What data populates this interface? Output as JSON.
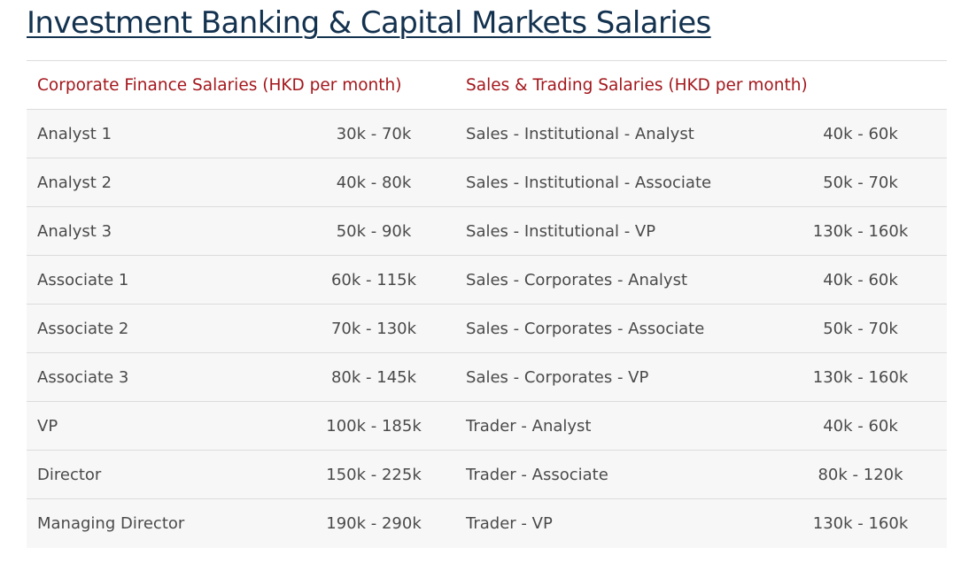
{
  "page": {
    "title": "Investment Banking & Capital Markets Salaries"
  },
  "table": {
    "headers": {
      "corporate_finance": "Corporate Finance Salaries (HKD per month)",
      "sales_trading": "Sales & Trading Salaries (HKD per month)"
    },
    "rows": [
      {
        "cf_role": "Analyst 1",
        "cf_range": "30k - 70k",
        "st_role": "Sales - Institutional - Analyst",
        "st_range": "40k - 60k"
      },
      {
        "cf_role": "Analyst 2",
        "cf_range": "40k - 80k",
        "st_role": "Sales - Institutional - Associate",
        "st_range": "50k - 70k"
      },
      {
        "cf_role": "Analyst 3",
        "cf_range": "50k - 90k",
        "st_role": "Sales - Institutional - VP",
        "st_range": "130k - 160k"
      },
      {
        "cf_role": "Associate 1",
        "cf_range": "60k - 115k",
        "st_role": "Sales - Corporates - Analyst",
        "st_range": "40k - 60k"
      },
      {
        "cf_role": "Associate 2",
        "cf_range": "70k - 130k",
        "st_role": "Sales - Corporates - Associate",
        "st_range": "50k - 70k"
      },
      {
        "cf_role": "Associate 3",
        "cf_range": "80k - 145k",
        "st_role": "Sales - Corporates - VP",
        "st_range": "130k - 160k"
      },
      {
        "cf_role": "VP",
        "cf_range": "100k - 185k",
        "st_role": "Trader - Analyst",
        "st_range": "40k - 60k"
      },
      {
        "cf_role": "Director",
        "cf_range": "150k - 225k",
        "st_role": "Trader - Associate",
        "st_range": "80k - 120k"
      },
      {
        "cf_role": "Managing Director",
        "cf_range": "190k - 290k",
        "st_role": "Trader - VP",
        "st_range": "130k - 160k"
      }
    ]
  },
  "colors": {
    "title": "#13324f",
    "header_text": "#a3171c",
    "body_text": "#4a4a4a",
    "row_background": "#f7f7f7",
    "row_border": "#dcdcdc"
  }
}
